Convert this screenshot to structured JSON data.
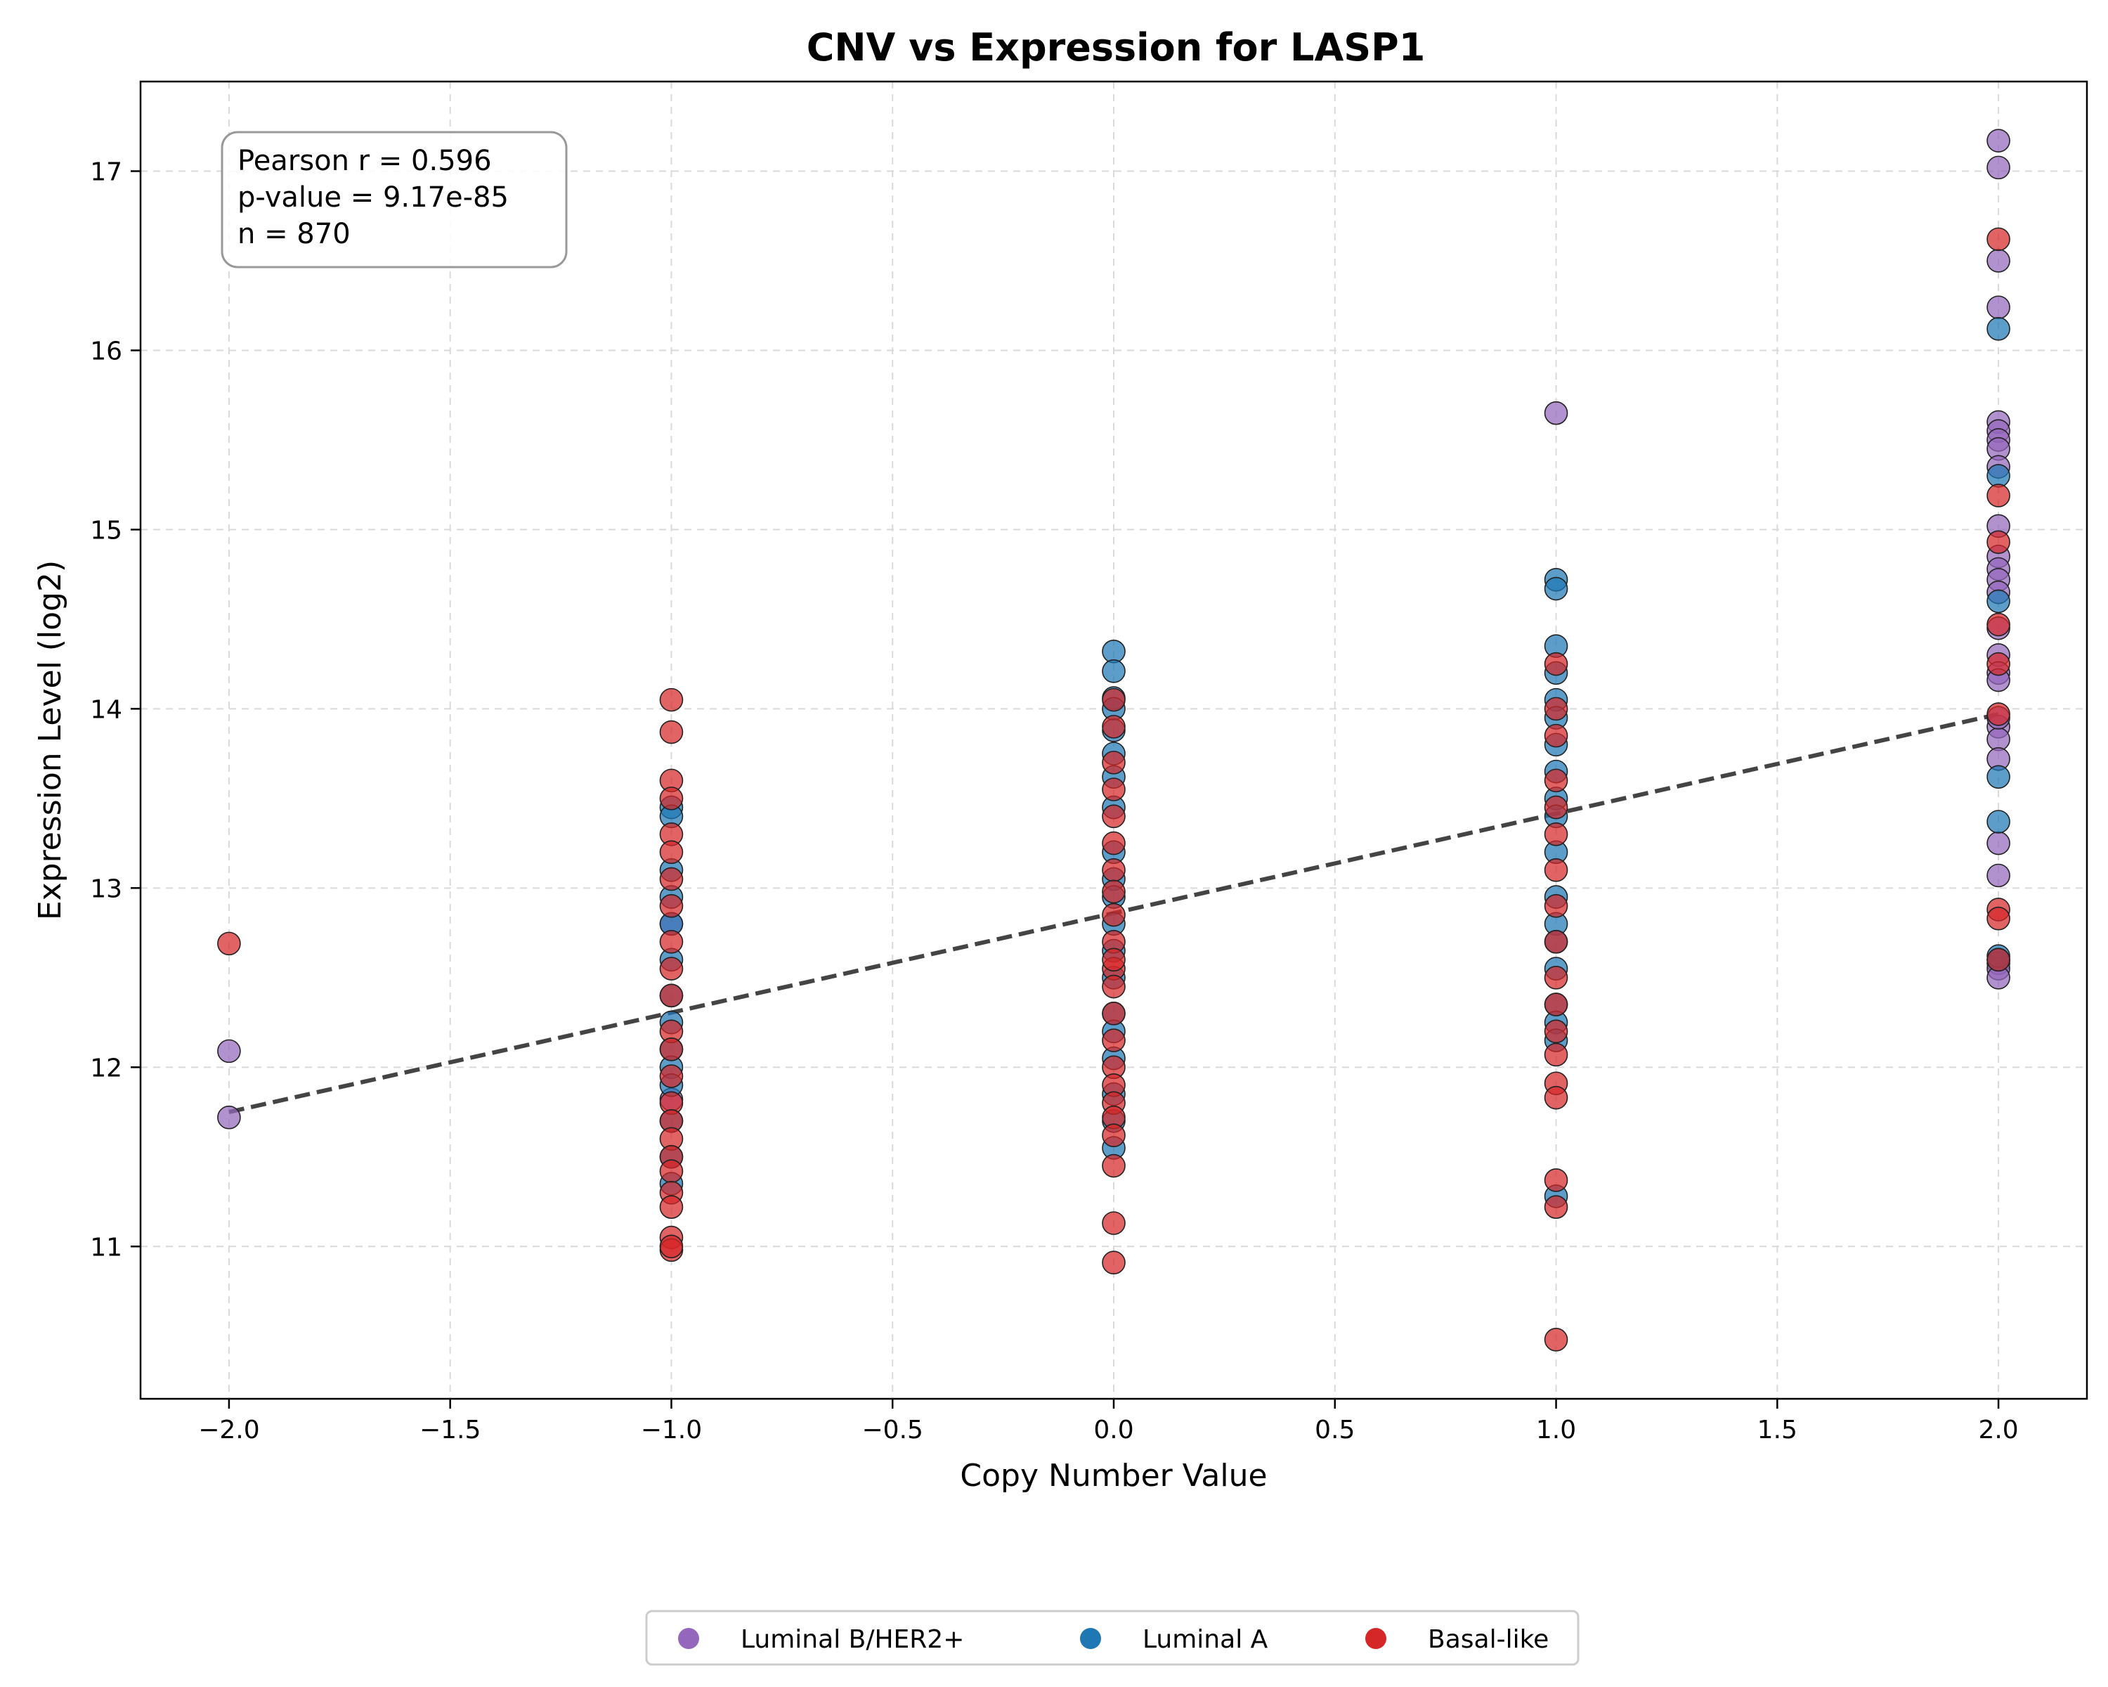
{
  "chart_data": {
    "type": "scatter",
    "title": "CNV vs Expression for LASP1",
    "xlabel": "Copy Number Value",
    "ylabel": "Expression Level (log2)",
    "xlim": [
      -2.2,
      2.2
    ],
    "ylim": [
      10.15,
      17.5
    ],
    "x_ticks": [
      -2.0,
      -1.5,
      -1.0,
      -0.5,
      0.0,
      0.5,
      1.0,
      1.5,
      2.0
    ],
    "x_tick_labels": [
      "−2.0",
      "−1.5",
      "−1.0",
      "−0.5",
      "0.0",
      "0.5",
      "1.0",
      "1.5",
      "2.0"
    ],
    "y_ticks": [
      11,
      12,
      13,
      14,
      15,
      16,
      17
    ],
    "y_tick_labels": [
      "11",
      "12",
      "13",
      "14",
      "15",
      "16",
      "17"
    ],
    "grid": true,
    "legend_position": "bottom-center",
    "stats": {
      "lines": [
        "Pearson r = 0.596",
        "p-value = 9.17e-85",
        "n = 870"
      ],
      "position": "top-left"
    },
    "trendline": {
      "x": [
        -2.0,
        2.0
      ],
      "y": [
        11.75,
        13.97
      ],
      "style": "dashed",
      "color": "#3a3a3a"
    },
    "series": [
      {
        "name": "Luminal B/HER2+",
        "color": "#9467bd",
        "x": [
          -2,
          -2,
          -1,
          -1,
          1,
          2,
          2,
          2,
          2,
          2,
          2,
          2,
          2,
          2,
          2,
          2,
          2,
          2,
          2,
          2,
          2,
          2,
          2,
          2,
          2,
          2,
          2,
          2,
          2,
          2,
          2,
          2,
          2
        ],
        "y": [
          12.09,
          11.72,
          12.8,
          11.82,
          15.65,
          17.17,
          17.02,
          16.5,
          16.24,
          15.6,
          15.55,
          15.5,
          15.45,
          15.35,
          15.02,
          14.85,
          14.78,
          14.72,
          14.65,
          14.45,
          14.3,
          14.2,
          14.16,
          13.9,
          13.83,
          13.72,
          13.25,
          13.07,
          12.6,
          12.58,
          12.55,
          12.5,
          13.95
        ]
      },
      {
        "name": "Luminal A",
        "color": "#1f77b4",
        "x": [
          -1,
          -1,
          -1,
          -1,
          -1,
          -1,
          -1,
          -1,
          -1,
          -1,
          -1,
          -1,
          -1,
          -1,
          0,
          0,
          0,
          0,
          0,
          0,
          0,
          0,
          0,
          0,
          0,
          0,
          0,
          0,
          0,
          0,
          0,
          0,
          0,
          0,
          1,
          1,
          1,
          1,
          1,
          1,
          1,
          1,
          1,
          1,
          1,
          1,
          1,
          1,
          1,
          1,
          1,
          1,
          1,
          2,
          2,
          2,
          2,
          2,
          2,
          2
        ],
        "y": [
          13.45,
          13.4,
          13.1,
          12.95,
          12.8,
          12.6,
          12.4,
          12.25,
          12.1,
          12.0,
          11.9,
          11.7,
          11.5,
          11.35,
          14.32,
          14.21,
          14.06,
          14.0,
          13.88,
          13.75,
          13.62,
          13.45,
          13.2,
          13.05,
          12.95,
          12.8,
          12.65,
          12.5,
          12.3,
          12.2,
          12.05,
          11.85,
          11.7,
          11.55,
          14.72,
          14.67,
          14.35,
          14.2,
          14.05,
          13.95,
          13.8,
          13.65,
          13.5,
          13.4,
          13.2,
          12.95,
          12.8,
          12.7,
          12.55,
          12.35,
          12.25,
          12.15,
          11.28,
          16.12,
          15.3,
          14.6,
          13.62,
          13.37,
          12.62,
          12.6
        ]
      },
      {
        "name": "Basal-like",
        "color": "#d62728",
        "x": [
          -2,
          -1,
          -1,
          -1,
          -1,
          -1,
          -1,
          -1,
          -1,
          -1,
          -1,
          -1,
          -1,
          -1,
          -1,
          -1,
          -1,
          -1,
          -1,
          -1,
          -1,
          -1,
          -1,
          -1,
          -1,
          0,
          0,
          0,
          0,
          0,
          0,
          0,
          0,
          0,
          0,
          0,
          0,
          0,
          0,
          0,
          0,
          0,
          0,
          0,
          0,
          0,
          0,
          0,
          1,
          1,
          1,
          1,
          1,
          1,
          1,
          1,
          1,
          1,
          1,
          1,
          1,
          1,
          1,
          1,
          1,
          1,
          2,
          2,
          2,
          2,
          2,
          2,
          2,
          2,
          2
        ],
        "y": [
          12.69,
          14.05,
          13.87,
          13.6,
          13.5,
          13.3,
          13.2,
          13.05,
          12.9,
          12.7,
          12.55,
          12.4,
          12.2,
          12.1,
          11.95,
          11.8,
          11.7,
          11.6,
          11.5,
          11.42,
          11.3,
          11.22,
          11.05,
          10.98,
          11.0,
          14.05,
          13.9,
          13.7,
          13.55,
          13.4,
          13.25,
          13.1,
          12.98,
          12.85,
          12.7,
          12.55,
          12.45,
          12.3,
          12.15,
          12.0,
          11.9,
          11.8,
          11.72,
          11.62,
          11.45,
          11.13,
          10.91,
          12.6,
          14.25,
          14.0,
          13.85,
          13.6,
          13.3,
          13.1,
          12.9,
          12.7,
          12.5,
          12.35,
          12.2,
          12.07,
          11.91,
          11.83,
          11.37,
          11.22,
          10.48,
          13.45,
          16.62,
          15.19,
          14.93,
          14.47,
          14.25,
          13.97,
          12.88,
          12.83,
          12.6
        ]
      }
    ]
  }
}
